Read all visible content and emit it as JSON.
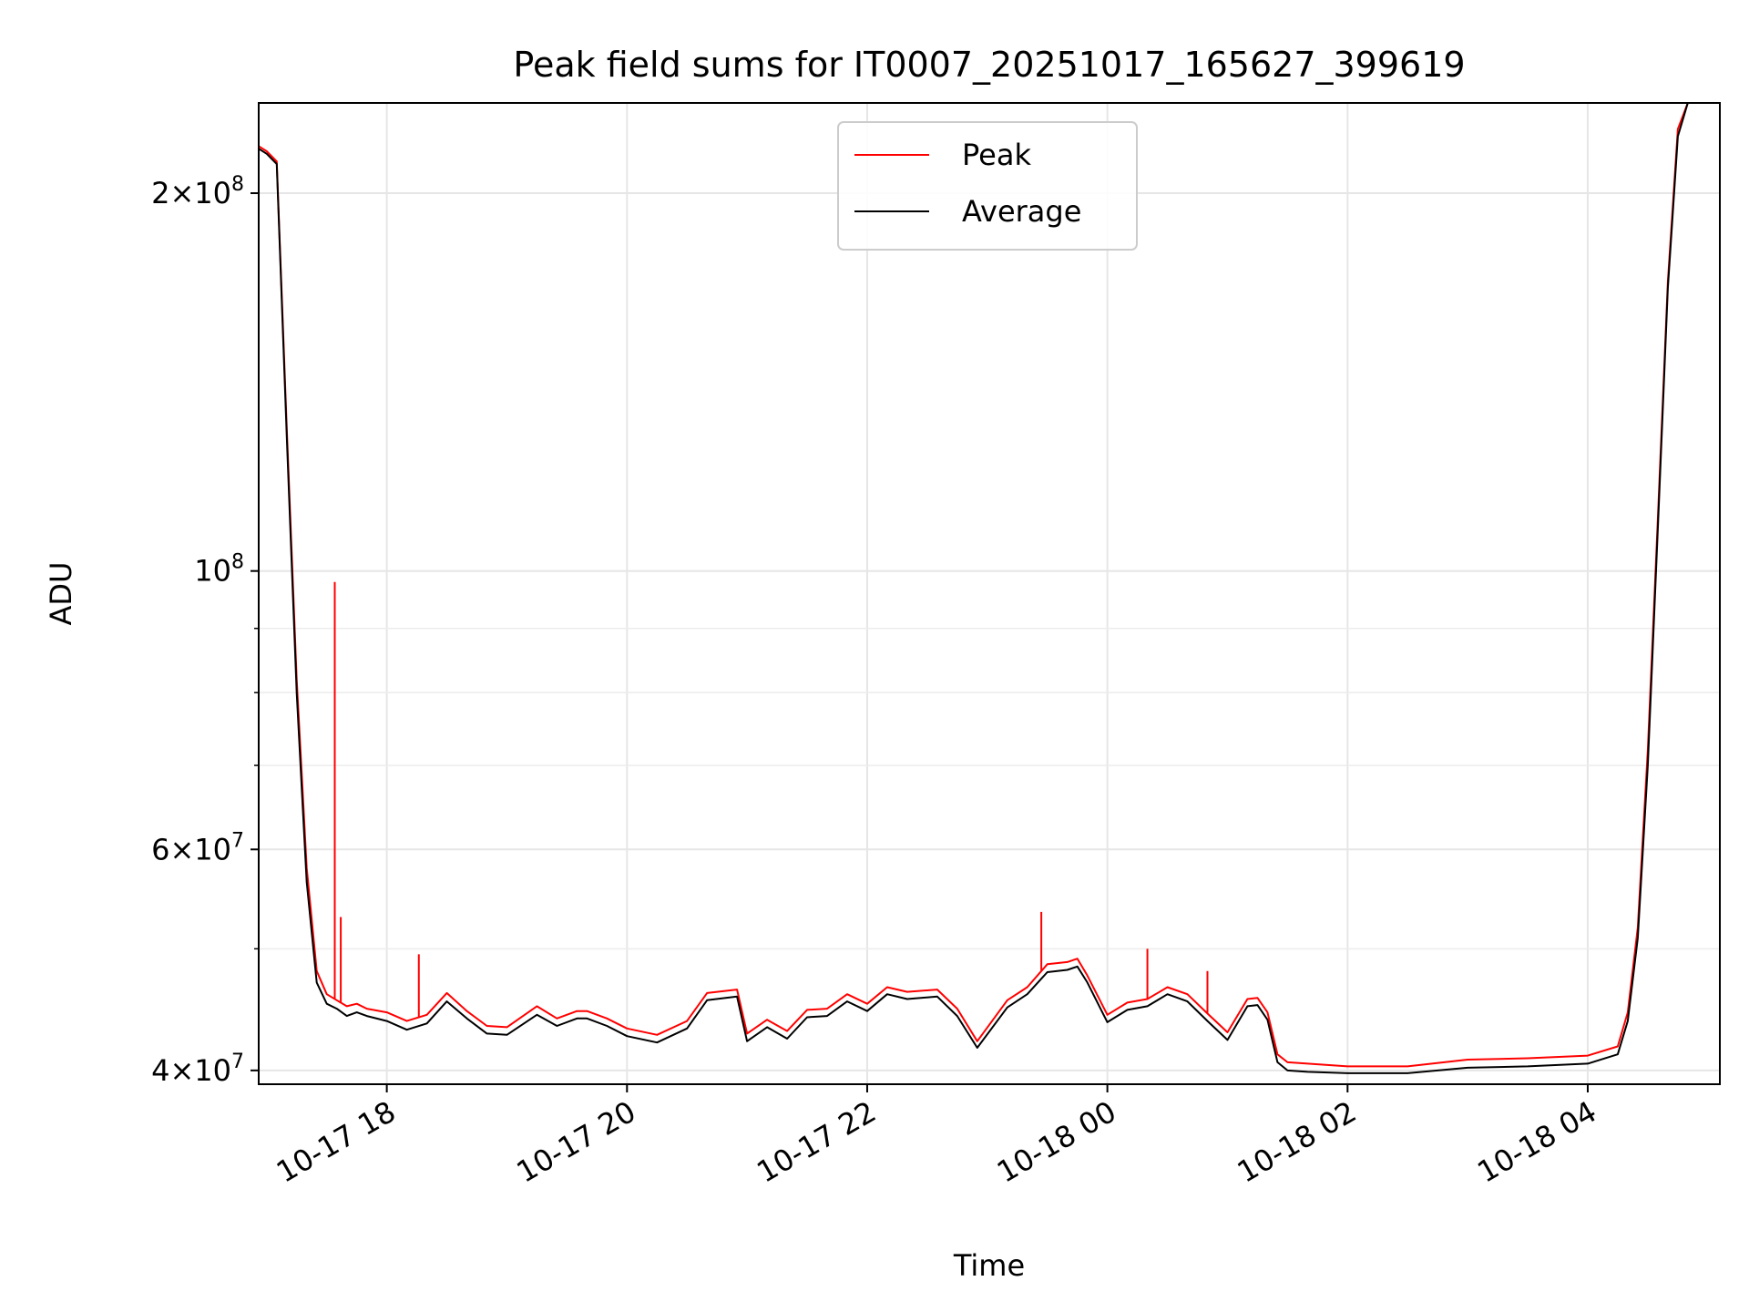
{
  "chart_data": {
    "type": "line",
    "title": "Peak field sums for IT0007_20251017_165627_399619",
    "xlabel": "Time",
    "ylabel": "ADU",
    "y_scale": "log",
    "grid": true,
    "legend_position": "upper center",
    "xlim": [
      "2025-10-17 16:56",
      "2025-10-18 05:06"
    ],
    "ylim": [
      39000000,
      236000000
    ],
    "x_ticks": [
      {
        "value": "2025-10-17 18:00",
        "label": "10-17 18"
      },
      {
        "value": "2025-10-17 20:00",
        "label": "10-17 20"
      },
      {
        "value": "2025-10-17 22:00",
        "label": "10-17 22"
      },
      {
        "value": "2025-10-18 00:00",
        "label": "10-18 00"
      },
      {
        "value": "2025-10-18 02:00",
        "label": "10-18 02"
      },
      {
        "value": "2025-10-18 04:00",
        "label": "10-18 04"
      }
    ],
    "y_ticks": [
      {
        "value": 40000000,
        "base": "4",
        "exp": "7"
      },
      {
        "value": 60000000,
        "base": "6",
        "exp": "7"
      },
      {
        "value": 100000000,
        "base": "",
        "exp": "8"
      },
      {
        "value": 200000000,
        "base": "2",
        "exp": "8"
      }
    ],
    "y_minor_ticks": [
      50000000,
      70000000,
      80000000,
      90000000
    ],
    "x": [
      "2025-10-17 16:56",
      "2025-10-17 17:00",
      "2025-10-17 17:05",
      "2025-10-17 17:10",
      "2025-10-17 17:15",
      "2025-10-17 17:20",
      "2025-10-17 17:25",
      "2025-10-17 17:30",
      "2025-10-17 17:35",
      "2025-10-17 17:40",
      "2025-10-17 17:45",
      "2025-10-17 17:50",
      "2025-10-17 18:00",
      "2025-10-17 18:10",
      "2025-10-17 18:20",
      "2025-10-17 18:30",
      "2025-10-17 18:40",
      "2025-10-17 18:50",
      "2025-10-17 19:00",
      "2025-10-17 19:15",
      "2025-10-17 19:25",
      "2025-10-17 19:35",
      "2025-10-17 19:40",
      "2025-10-17 19:50",
      "2025-10-17 20:00",
      "2025-10-17 20:15",
      "2025-10-17 20:30",
      "2025-10-17 20:40",
      "2025-10-17 20:55",
      "2025-10-17 21:00",
      "2025-10-17 21:10",
      "2025-10-17 21:20",
      "2025-10-17 21:30",
      "2025-10-17 21:40",
      "2025-10-17 21:50",
      "2025-10-17 22:00",
      "2025-10-17 22:10",
      "2025-10-17 22:20",
      "2025-10-17 22:35",
      "2025-10-17 22:45",
      "2025-10-17 22:55",
      "2025-10-17 23:10",
      "2025-10-17 23:20",
      "2025-10-17 23:30",
      "2025-10-17 23:40",
      "2025-10-17 23:45",
      "2025-10-17 23:50",
      "2025-10-18 00:00",
      "2025-10-18 00:10",
      "2025-10-18 00:20",
      "2025-10-18 00:30",
      "2025-10-18 00:40",
      "2025-10-18 00:50",
      "2025-10-18 01:00",
      "2025-10-18 01:10",
      "2025-10-18 01:15",
      "2025-10-18 01:20",
      "2025-10-18 01:25",
      "2025-10-18 01:30",
      "2025-10-18 01:40",
      "2025-10-18 02:00",
      "2025-10-18 02:30",
      "2025-10-18 03:00",
      "2025-10-18 03:30",
      "2025-10-18 04:00",
      "2025-10-18 04:15",
      "2025-10-18 04:20",
      "2025-10-18 04:25",
      "2025-10-18 04:30",
      "2025-10-18 04:35",
      "2025-10-18 04:40",
      "2025-10-18 04:45",
      "2025-10-18 04:50",
      "2025-10-18 04:55",
      "2025-10-18 05:00",
      "2025-10-18 05:06"
    ],
    "series": [
      {
        "name": "Peak",
        "color": "#ff0000",
        "values": [
          218000000,
          216000000,
          212000000,
          130000000,
          82000000,
          58000000,
          48000000,
          46000000,
          45500000,
          45000000,
          45200000,
          44800000,
          44500000,
          43800000,
          44300000,
          46100000,
          44600000,
          43400000,
          43300000,
          45000000,
          44000000,
          44600000,
          44600000,
          44000000,
          43200000,
          42700000,
          43800000,
          46100000,
          46400000,
          42800000,
          43900000,
          43000000,
          44700000,
          44800000,
          46000000,
          45200000,
          46600000,
          46200000,
          46400000,
          44800000,
          42200000,
          45500000,
          46600000,
          48600000,
          48800000,
          49100000,
          47600000,
          44300000,
          45300000,
          45600000,
          46600000,
          46000000,
          44400000,
          42900000,
          45600000,
          45700000,
          44500000,
          41200000,
          40600000,
          40500000,
          40300000,
          40300000,
          40800000,
          40900000,
          41100000,
          41800000,
          44500000,
          52000000,
          72000000,
          110000000,
          170000000,
          225000000,
          236000000,
          236000000,
          236000000,
          236000000
        ]
      },
      {
        "name": "Average",
        "color": "#000000",
        "values": [
          217000000,
          215000000,
          211000000,
          128000000,
          80000000,
          56500000,
          47000000,
          45200000,
          44800000,
          44200000,
          44500000,
          44200000,
          43800000,
          43100000,
          43600000,
          45400000,
          44000000,
          42800000,
          42700000,
          44300000,
          43400000,
          44000000,
          44000000,
          43400000,
          42600000,
          42100000,
          43200000,
          45500000,
          45800000,
          42200000,
          43300000,
          42400000,
          44100000,
          44200000,
          45400000,
          44600000,
          46000000,
          45600000,
          45800000,
          44200000,
          41700000,
          44900000,
          46000000,
          47900000,
          48100000,
          48400000,
          47000000,
          43700000,
          44700000,
          45000000,
          46000000,
          45400000,
          43800000,
          42300000,
          45000000,
          45100000,
          43900000,
          40600000,
          40000000,
          39900000,
          39800000,
          39800000,
          40200000,
          40300000,
          40500000,
          41200000,
          43800000,
          51000000,
          70000000,
          108000000,
          168000000,
          222000000,
          236000000,
          236000000,
          236000000,
          236000000
        ]
      }
    ],
    "spikes": [
      {
        "series": "Peak",
        "x": "2025-10-17 17:34",
        "value": 98000000
      },
      {
        "series": "Peak",
        "x": "2025-10-17 17:37",
        "value": 53000000
      },
      {
        "series": "Peak",
        "x": "2025-10-17 18:16",
        "value": 49500000
      },
      {
        "series": "Peak",
        "x": "2025-10-17 23:27",
        "value": 53500000
      },
      {
        "series": "Peak",
        "x": "2025-10-18 00:20",
        "value": 50000000
      },
      {
        "series": "Peak",
        "x": "2025-10-18 00:50",
        "value": 48000000
      }
    ]
  }
}
